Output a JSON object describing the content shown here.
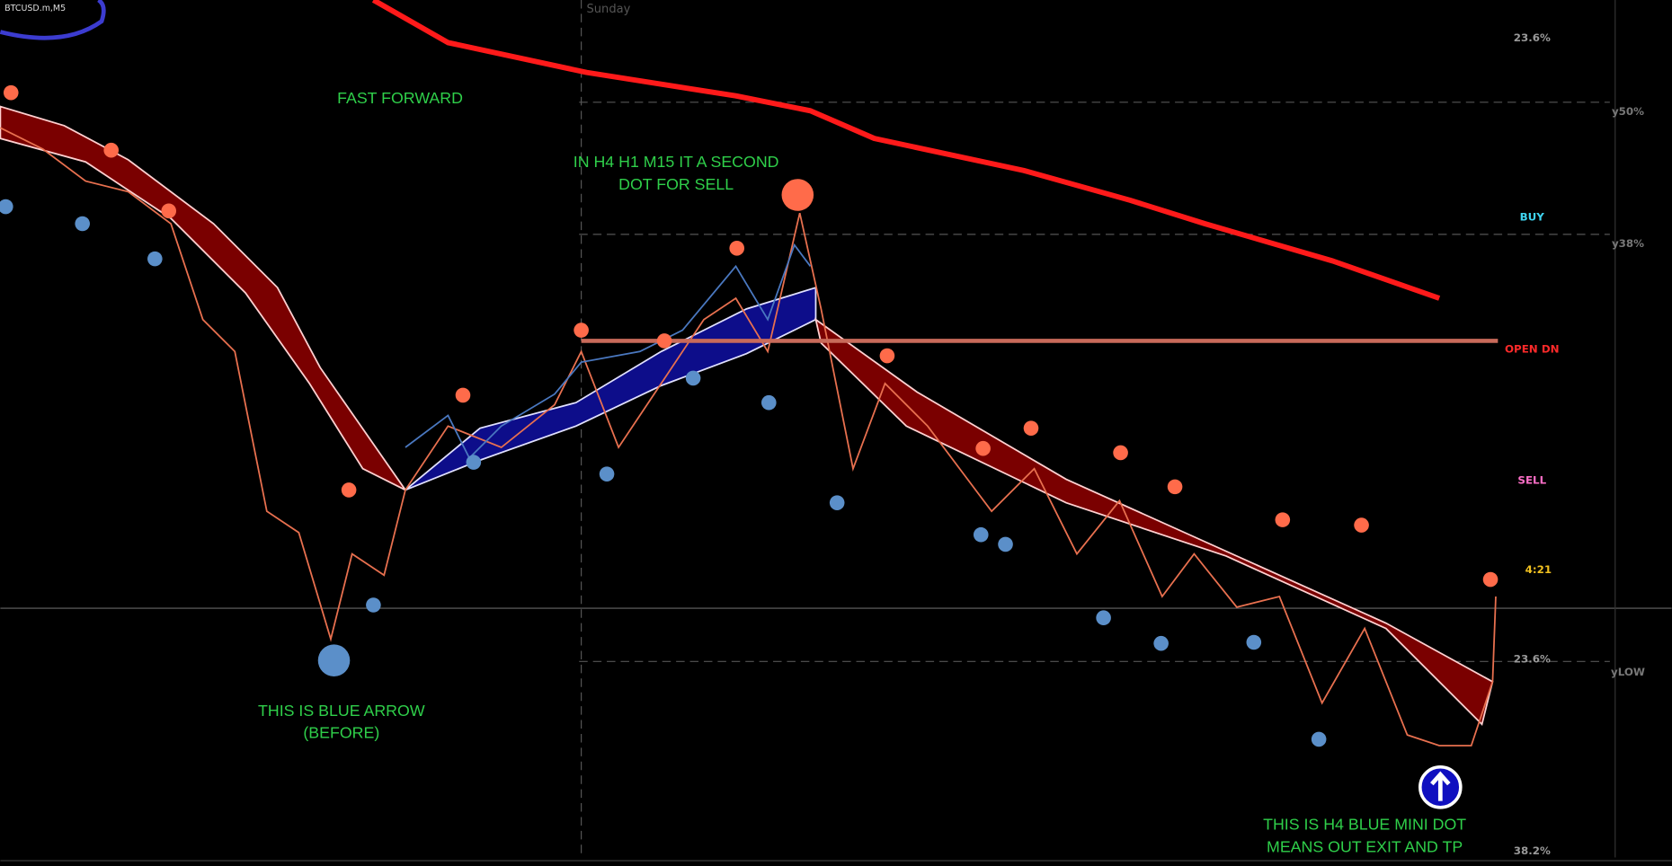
{
  "header": {
    "symbol": "BTCUSD.m,M5",
    "day": "Sunday"
  },
  "levels": [
    {
      "label": "23.6%"
    },
    {
      "label": "y50%"
    },
    {
      "label": "BUY"
    },
    {
      "label": "y38%"
    },
    {
      "label": "OPEN DN"
    },
    {
      "label": "SELL"
    },
    {
      "label": "4:21"
    },
    {
      "label": "23.6%"
    },
    {
      "label": "yLOW"
    },
    {
      "label": "38.2%"
    }
  ],
  "annotations": [
    {
      "lines": [
        "FAST FORWARD"
      ]
    },
    {
      "lines": [
        "IN H4 H1 M15 IT A SECOND",
        "DOT FOR SELL"
      ]
    },
    {
      "lines": [
        "THIS IS BLUE ARROW",
        "(BEFORE)"
      ]
    },
    {
      "lines": [
        "THIS IS H4 BLUE MINI DOT",
        "MEANS OUT EXIT AND TP"
      ]
    }
  ]
}
